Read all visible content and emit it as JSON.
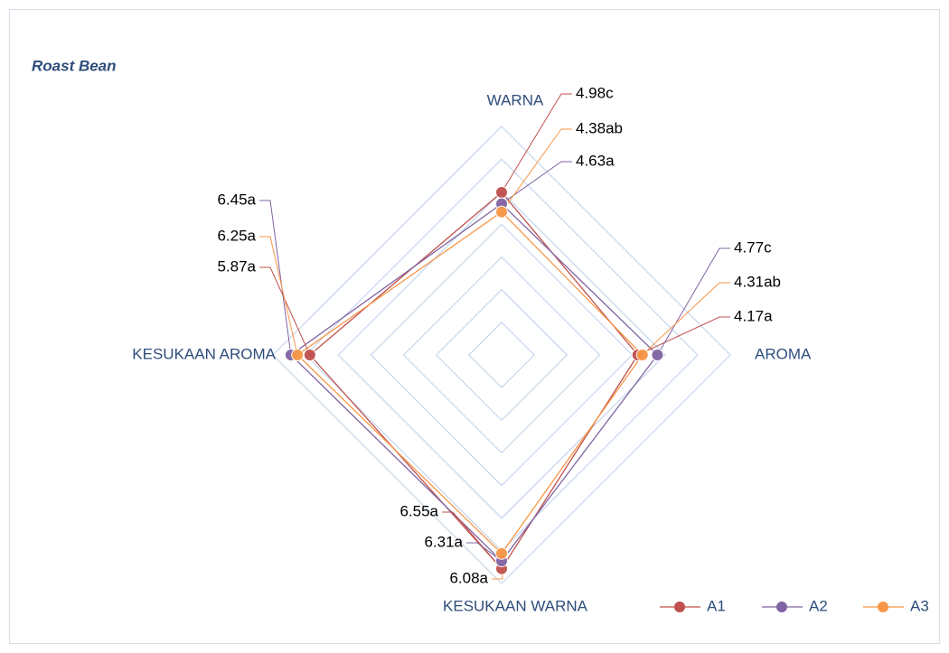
{
  "chart_data": {
    "type": "radar",
    "title": "Roast Bean",
    "categories": [
      "WARNA",
      "AROMA",
      "KESUKAAN WARNA",
      "KESUKAAN AROMA"
    ],
    "ylim": [
      0,
      7
    ],
    "yticks": [
      0,
      1,
      2,
      3,
      4,
      5,
      6,
      7
    ],
    "grid": true,
    "legend": "bottom-right",
    "series": [
      {
        "name": "A1",
        "color": "#c0504d",
        "values": [
          4.98,
          4.17,
          6.55,
          5.87
        ],
        "value_labels": [
          "4.98c",
          "4.17a",
          "6.55a",
          "5.87a"
        ]
      },
      {
        "name": "A2",
        "color": "#8064a2",
        "values": [
          4.63,
          4.77,
          6.31,
          6.45
        ],
        "value_labels": [
          "4.63a",
          "4.77c",
          "6.31a",
          "6.45a"
        ]
      },
      {
        "name": "A3",
        "color": "#f79646",
        "values": [
          4.38,
          4.31,
          6.08,
          6.25
        ],
        "value_labels": [
          "4.38ab",
          "4.31ab",
          "6.08a",
          "6.25a"
        ]
      }
    ]
  }
}
